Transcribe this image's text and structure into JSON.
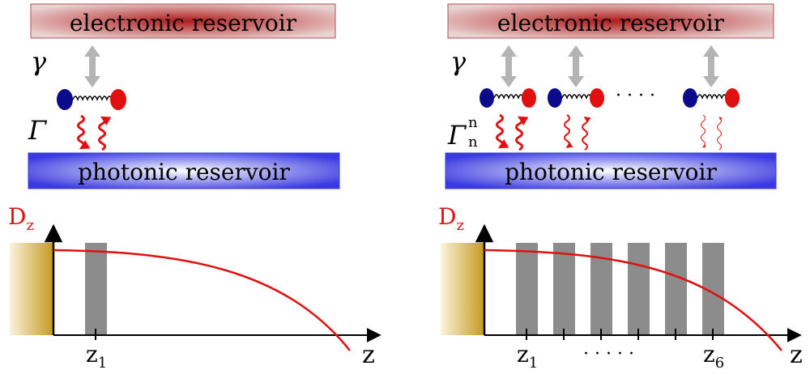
{
  "left": {
    "electronic_label": "electronic reservoir",
    "photonic_label": "photonic reservoir",
    "gamma": "γ",
    "Gamma": "Γ",
    "Dz_main": "D",
    "Dz_sub": "z",
    "axis_label": "z",
    "tick_main": "z",
    "tick_sub": "1"
  },
  "right": {
    "electronic_label": "electronic reservoir",
    "photonic_label": "photonic reservoir",
    "gamma": "γ",
    "Gamma": "Γ",
    "Gamma_sup": "n",
    "Gamma_sub": "n",
    "dots": "· · · ·",
    "Dz_main": "D",
    "Dz_sub": "z",
    "axis_label": "z",
    "tick1_main": "z",
    "tick1_sub": "1",
    "tick6_main": "z",
    "tick6_sub": "6",
    "axis_dots": "·  ·  ·  ·  ·"
  },
  "colors": {
    "electronic_dark": "#b01a1a",
    "electronic_light": "#e8c9c9",
    "photonic_dark": "#3f3fe0",
    "photonic_light": "#e9e9fb",
    "blue_dot": "#0a0a8a",
    "red_dot": "#e01010",
    "curve": "#e01010",
    "slab": "#8c8c8c",
    "gold": "#c49a1e"
  }
}
